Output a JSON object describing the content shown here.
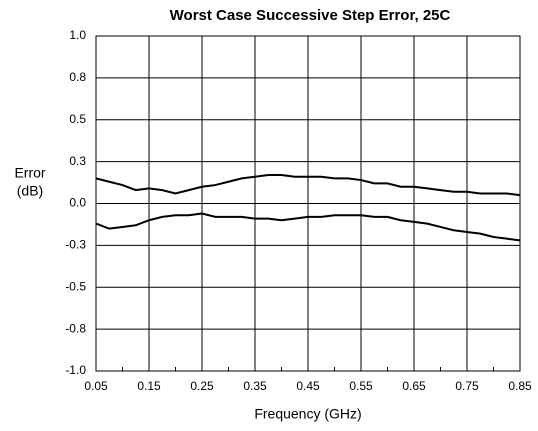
{
  "chart_data": {
    "type": "line",
    "title": "Worst Case Successive Step Error, 25C",
    "xlabel": "Frequency (GHz)",
    "ylabel": [
      "Error",
      "(dB)"
    ],
    "x": [
      0.05,
      0.075,
      0.1,
      0.125,
      0.15,
      0.175,
      0.2,
      0.225,
      0.25,
      0.275,
      0.3,
      0.325,
      0.35,
      0.375,
      0.4,
      0.425,
      0.45,
      0.475,
      0.5,
      0.525,
      0.55,
      0.575,
      0.6,
      0.625,
      0.65,
      0.675,
      0.7,
      0.725,
      0.75,
      0.775,
      0.8,
      0.825,
      0.85
    ],
    "series": [
      {
        "color": "#000000",
        "values": [
          0.15,
          0.13,
          0.11,
          0.08,
          0.09,
          0.08,
          0.06,
          0.08,
          0.1,
          0.11,
          0.13,
          0.15,
          0.16,
          0.17,
          0.17,
          0.16,
          0.16,
          0.16,
          0.15,
          0.15,
          0.14,
          0.12,
          0.12,
          0.1,
          0.1,
          0.09,
          0.08,
          0.07,
          0.07,
          0.06,
          0.06,
          0.06,
          0.05
        ]
      },
      {
        "color": "#000000",
        "values": [
          -0.12,
          -0.15,
          -0.14,
          -0.13,
          -0.1,
          -0.08,
          -0.07,
          -0.07,
          -0.06,
          -0.08,
          -0.08,
          -0.08,
          -0.09,
          -0.09,
          -0.1,
          -0.09,
          -0.08,
          -0.08,
          -0.07,
          -0.07,
          -0.07,
          -0.08,
          -0.08,
          -0.1,
          -0.11,
          -0.12,
          -0.14,
          -0.16,
          -0.17,
          -0.18,
          -0.2,
          -0.21,
          -0.22
        ]
      }
    ],
    "xlim": [
      0.05,
      0.85
    ],
    "xticks": [
      0.05,
      0.15,
      0.25,
      0.35,
      0.45,
      0.55,
      0.65,
      0.75,
      0.85
    ],
    "ylim": [
      -1,
      1
    ],
    "yticks": [
      {
        "value": -1,
        "label": "-1.0"
      },
      {
        "value": -0.75,
        "label": "-0.8"
      },
      {
        "value": -0.5,
        "label": "-0.5"
      },
      {
        "value": -0.25,
        "label": "-0.3"
      },
      {
        "value": 0,
        "label": "0.0"
      },
      {
        "value": 0.25,
        "label": "0.3"
      },
      {
        "value": 0.5,
        "label": "0.5"
      },
      {
        "value": 0.75,
        "label": "0.8"
      },
      {
        "value": 1,
        "label": "1.0"
      }
    ],
    "xgrid_minor": [
      0.1,
      0.2,
      0.3,
      0.4,
      0.5,
      0.6,
      0.7,
      0.8
    ],
    "grid": true
  }
}
